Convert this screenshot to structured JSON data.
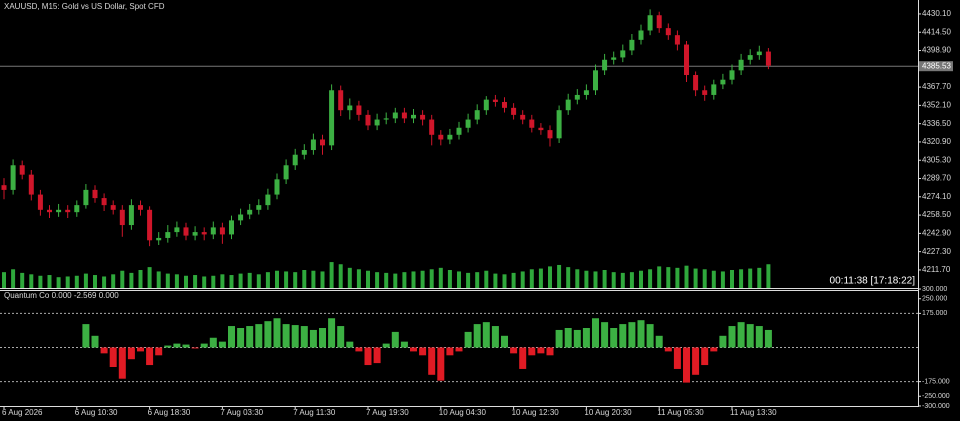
{
  "chart_data": [
    {
      "type": "candlestick",
      "title": "XAUUSD, M15:  Gold vs US Dollar, Spot CFD",
      "annotation": "00:11:38 [17:18:22]",
      "color_up": "#3cb043",
      "color_down": "#d0162a",
      "volume_color": "#2fa83c",
      "open": [
        4284,
        4280,
        4301,
        4293,
        4276,
        4263,
        4261,
        4263,
        4261,
        4267,
        4280,
        4273,
        4267,
        4263,
        4250,
        4267,
        4263,
        4237,
        4239,
        4244,
        4248,
        4241,
        4244,
        4242,
        4248,
        4242,
        4254,
        4259,
        4263,
        4267,
        4276,
        4289,
        4301,
        4310,
        4314,
        4323,
        4318,
        4365,
        4348,
        4352,
        4344,
        4335,
        4340,
        4341,
        4346,
        4341,
        4344,
        4340,
        4327,
        4323,
        4327,
        4333,
        4340,
        4348,
        4357,
        4355,
        4350,
        4344,
        4340,
        4333,
        4331,
        4324,
        4348,
        4357,
        4361,
        4365,
        4382,
        4391,
        4393,
        4399,
        4408,
        4416,
        4429,
        4418,
        4412,
        4404,
        4378,
        4365,
        4361,
        4370,
        4374,
        4382,
        4391,
        4395,
        4398
      ],
      "high": [
        4290,
        4306,
        4305,
        4297,
        4280,
        4267,
        4268,
        4267,
        4271,
        4285,
        4284,
        4277,
        4271,
        4267,
        4272,
        4271,
        4266,
        4244,
        4250,
        4253,
        4252,
        4249,
        4248,
        4253,
        4252,
        4258,
        4264,
        4268,
        4272,
        4281,
        4294,
        4306,
        4315,
        4319,
        4328,
        4327,
        4370,
        4369,
        4358,
        4356,
        4348,
        4345,
        4346,
        4350,
        4350,
        4349,
        4348,
        4344,
        4331,
        4332,
        4338,
        4345,
        4353,
        4360,
        4361,
        4359,
        4354,
        4348,
        4344,
        4337,
        4335,
        4352,
        4362,
        4366,
        4370,
        4387,
        4396,
        4398,
        4404,
        4413,
        4421,
        4434,
        4432,
        4422,
        4416,
        4407,
        4381,
        4369,
        4374,
        4379,
        4387,
        4396,
        4400,
        4403,
        4401
      ],
      "low": [
        4272,
        4276,
        4289,
        4271,
        4258,
        4256,
        4257,
        4256,
        4257,
        4264,
        4269,
        4262,
        4259,
        4240,
        4246,
        4258,
        4232,
        4233,
        4235,
        4240,
        4237,
        4237,
        4237,
        4238,
        4234,
        4238,
        4250,
        4255,
        4259,
        4263,
        4272,
        4285,
        4297,
        4306,
        4310,
        4310,
        4314,
        4343,
        4340,
        4339,
        4331,
        4331,
        4336,
        4337,
        4337,
        4337,
        4335,
        4318,
        4318,
        4319,
        4323,
        4329,
        4336,
        4344,
        4351,
        4346,
        4340,
        4336,
        4329,
        4327,
        4317,
        4320,
        4344,
        4353,
        4357,
        4361,
        4378,
        4387,
        4389,
        4395,
        4404,
        4412,
        4414,
        4408,
        4399,
        4372,
        4360,
        4356,
        4357,
        4366,
        4370,
        4378,
        4387,
        4391,
        4383
      ],
      "close": [
        4280,
        4301,
        4293,
        4276,
        4263,
        4261,
        4263,
        4261,
        4267,
        4280,
        4273,
        4267,
        4263,
        4250,
        4267,
        4263,
        4237,
        4239,
        4244,
        4248,
        4241,
        4244,
        4242,
        4248,
        4242,
        4254,
        4259,
        4263,
        4267,
        4276,
        4289,
        4301,
        4310,
        4314,
        4323,
        4318,
        4365,
        4348,
        4352,
        4344,
        4335,
        4340,
        4341,
        4346,
        4341,
        4344,
        4340,
        4327,
        4323,
        4327,
        4333,
        4340,
        4348,
        4357,
        4355,
        4350,
        4344,
        4340,
        4333,
        4331,
        4324,
        4348,
        4357,
        4361,
        4365,
        4382,
        4391,
        4393,
        4399,
        4408,
        4416,
        4429,
        4418,
        4412,
        4404,
        4378,
        4365,
        4361,
        4370,
        4374,
        4382,
        4391,
        4395,
        4398,
        4386
      ],
      "volume": [
        2200,
        2600,
        2100,
        1900,
        1700,
        1800,
        1500,
        1600,
        1700,
        2000,
        1800,
        1600,
        1900,
        2400,
        2100,
        2500,
        2900,
        2300,
        2000,
        1900,
        1700,
        1800,
        1600,
        1700,
        1900,
        1800,
        2000,
        2100,
        1900,
        2200,
        2400,
        2300,
        2200,
        2500,
        2400,
        2300,
        3600,
        3300,
        2800,
        2600,
        2400,
        2200,
        2100,
        2000,
        2200,
        2300,
        2400,
        2600,
        2800,
        2500,
        2300,
        2100,
        2200,
        2400,
        2000,
        1900,
        2100,
        2300,
        2600,
        2700,
        3000,
        3200,
        2900,
        2600,
        2400,
        2300,
        2500,
        2200,
        2100,
        2200,
        2400,
        2600,
        3000,
        2900,
        2800,
        3100,
        2700,
        2600,
        2400,
        2300,
        2500,
        2600,
        2700,
        2800,
        3300
      ],
      "volume_lim": [
        0,
        40000
      ],
      "current_price": 4385.53,
      "ylim": [
        4196.3,
        4442.0
      ],
      "yticks": [
        {
          "value": 4430.1,
          "label": "4430.10"
        },
        {
          "value": 4414.5,
          "label": "4414.50"
        },
        {
          "value": 4398.9,
          "label": "4398.90"
        },
        {
          "value": 4367.7,
          "label": "4367.70"
        },
        {
          "value": 4352.1,
          "label": "4352.10"
        },
        {
          "value": 4336.5,
          "label": "4336.50"
        },
        {
          "value": 4320.9,
          "label": "4320.90"
        },
        {
          "value": 4305.3,
          "label": "4305.30"
        },
        {
          "value": 4289.7,
          "label": "4289.70"
        },
        {
          "value": 4274.1,
          "label": "4274.10"
        },
        {
          "value": 4258.5,
          "label": "4258.50"
        },
        {
          "value": 4242.9,
          "label": "4242.90"
        },
        {
          "value": 4227.3,
          "label": "4227.30"
        },
        {
          "value": 4211.7,
          "label": "4211.70"
        }
      ],
      "xticks": [
        {
          "value": 0,
          "label": "6 Aug 2026"
        },
        {
          "value": 8,
          "label": "6 Aug 10:30"
        },
        {
          "value": 16,
          "label": "6 Aug 18:30"
        },
        {
          "value": 24,
          "label": "7 Aug 03:30"
        },
        {
          "value": 32,
          "label": "7 Aug 11:30"
        },
        {
          "value": 40,
          "label": "7 Aug 19:30"
        },
        {
          "value": 48,
          "label": "10 Aug 04:30"
        },
        {
          "value": 56,
          "label": "10 Aug 12:30"
        },
        {
          "value": 64,
          "label": "10 Aug 20:30"
        },
        {
          "value": 72,
          "label": "11 Aug 05:30"
        },
        {
          "value": 80,
          "label": "11 Aug 13:30"
        }
      ]
    },
    {
      "type": "bar",
      "title": "Quantum Co 0.000 -2.569 0.000",
      "color_up": "#3cb043",
      "color_down": "#e01b24",
      "values": [
        null,
        null,
        null,
        null,
        null,
        null,
        null,
        null,
        null,
        120,
        60,
        -30,
        -100,
        -160,
        -60,
        -20,
        -90,
        -40,
        10,
        20,
        15,
        -5,
        20,
        50,
        30,
        110,
        100,
        110,
        120,
        135,
        150,
        120,
        115,
        110,
        90,
        100,
        150,
        110,
        30,
        -20,
        -90,
        -80,
        20,
        80,
        30,
        -20,
        -40,
        -140,
        -170,
        -40,
        -20,
        80,
        120,
        130,
        110,
        60,
        -30,
        -110,
        -40,
        -30,
        -40,
        90,
        100,
        90,
        100,
        150,
        130,
        100,
        120,
        130,
        140,
        120,
        60,
        -20,
        -110,
        -180,
        -140,
        -90,
        -20,
        60,
        110,
        130,
        120,
        110,
        90
      ],
      "levels": [
        175,
        0,
        -175
      ],
      "ylim": [
        -300,
        300
      ],
      "yticks": [
        {
          "value": 300,
          "label": "300.000"
        },
        {
          "value": 250,
          "label": "250.000"
        },
        {
          "value": 175,
          "label": "175.000"
        },
        {
          "value": -175,
          "label": "-175.000"
        },
        {
          "value": -250,
          "label": "-250.000"
        },
        {
          "value": -300,
          "label": "-300.000"
        }
      ]
    }
  ]
}
